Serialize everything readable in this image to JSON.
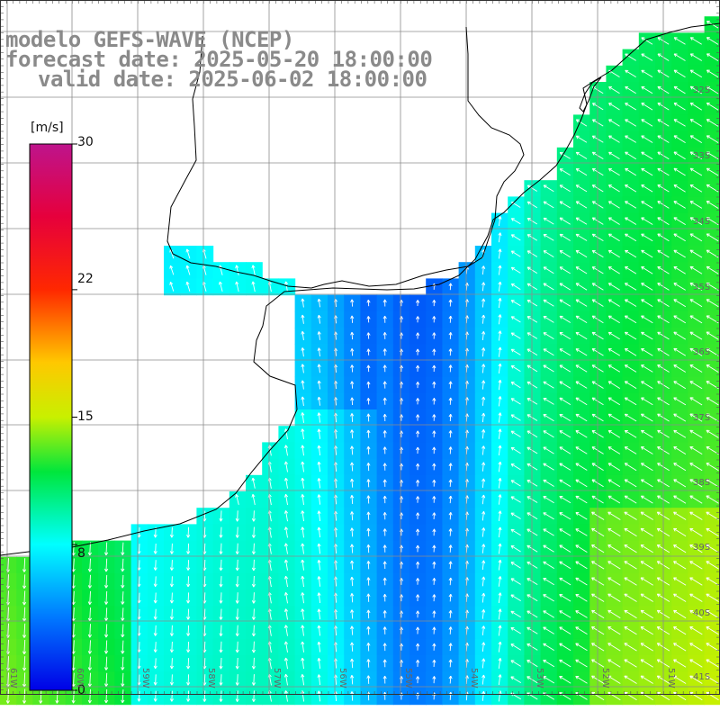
{
  "title": {
    "line1": "modelo GEFS-WAVE (NCEP)",
    "line2": "forecast date: 2025-05-20 18:00:00",
    "line3": "valid date: 2025-06-02 18:00:00"
  },
  "colorbar": {
    "unit": "[m/s]",
    "ticks": [
      "30",
      "22",
      "15",
      "8",
      "0"
    ],
    "tick_values": [
      30,
      22,
      15,
      8,
      0
    ],
    "min": 0,
    "max": 30
  },
  "lat_labels": [
    "32S",
    "33S",
    "34S",
    "35S",
    "36S",
    "37S",
    "38S",
    "39S",
    "40S",
    "41S"
  ],
  "lon_labels": [
    "61W",
    "60W",
    "59W",
    "58W",
    "57W",
    "56W",
    "55W",
    "54W",
    "53W",
    "52W",
    "51W"
  ],
  "colors": {
    "land": "#ffffff",
    "grid": "#888888",
    "coast": "#000000",
    "arrow": "#ffffff"
  }
}
